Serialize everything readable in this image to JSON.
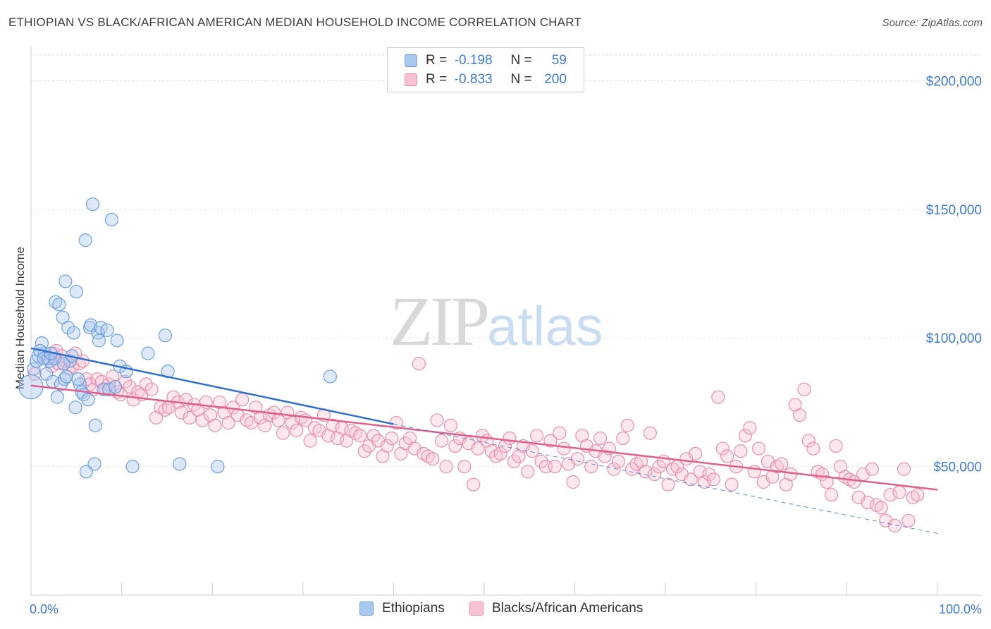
{
  "title": "ETHIOPIAN VS BLACK/AFRICAN AMERICAN MEDIAN HOUSEHOLD INCOME CORRELATION CHART",
  "source": "Source: ZipAtlas.com",
  "watermark": {
    "zip": "ZIP",
    "atlas": "atlas"
  },
  "legend": {
    "rows": [
      {
        "r_label": "R =",
        "r_value": "-0.198",
        "n_label": "N =",
        "n_value": "59",
        "color": "#a9c8f0",
        "border": "#6e9fdc"
      },
      {
        "r_label": "R =",
        "r_value": "-0.833",
        "n_label": "N =",
        "n_value": "200",
        "color": "#f7c3d3",
        "border": "#ea8fae"
      }
    ]
  },
  "bottom_legend": [
    {
      "label": "Ethiopians",
      "color": "#a9c8f0",
      "border": "#6e9fdc"
    },
    {
      "label": "Blacks/African Americans",
      "color": "#f7c3d3",
      "border": "#ea8fae"
    }
  ],
  "chart_data": {
    "type": "scatter",
    "title": "ETHIOPIAN VS BLACK/AFRICAN AMERICAN MEDIAN HOUSEHOLD INCOME CORRELATION CHART",
    "xlabel": "",
    "ylabel": "Median Household Income",
    "xlim": [
      0,
      100
    ],
    "ylim": [
      0,
      210000
    ],
    "x_tick_labels": [
      {
        "value": 0,
        "label": "0.0%"
      },
      {
        "value": 100,
        "label": "100.0%"
      }
    ],
    "y_ticks": [
      {
        "value": 50000,
        "label": "$50,000"
      },
      {
        "value": 100000,
        "label": "$100,000"
      },
      {
        "value": 150000,
        "label": "$150,000"
      },
      {
        "value": 200000,
        "label": "$200,000"
      }
    ],
    "grid": true,
    "legend_position": "top-center",
    "series": [
      {
        "name": "Ethiopians",
        "color": "#a9c8f0",
        "stroke": "#6e9fdc",
        "trend_color": "#2f6fcf",
        "trend": {
          "x0": 0,
          "y0": 96000,
          "x1": 40,
          "y1": 66500,
          "dashed_to_x": 100,
          "dashed_to_y": 24000
        },
        "points": [
          [
            0.0,
            81000
          ],
          [
            0.3,
            88000
          ],
          [
            0.6,
            91000
          ],
          [
            0.8,
            93000
          ],
          [
            1.2,
            98000
          ],
          [
            1.5,
            94000
          ],
          [
            1.7,
            86000
          ],
          [
            1.9,
            92000
          ],
          [
            2.1,
            91000
          ],
          [
            2.4,
            83000
          ],
          [
            2.6,
            92000
          ],
          [
            2.7,
            114000
          ],
          [
            2.9,
            77000
          ],
          [
            3.1,
            113000
          ],
          [
            3.3,
            82000
          ],
          [
            3.5,
            108000
          ],
          [
            3.7,
            84000
          ],
          [
            3.8,
            122000
          ],
          [
            3.9,
            85000
          ],
          [
            4.1,
            104000
          ],
          [
            4.3,
            91000
          ],
          [
            4.5,
            93000
          ],
          [
            4.7,
            102000
          ],
          [
            4.9,
            73000
          ],
          [
            5.0,
            118000
          ],
          [
            5.4,
            82000
          ],
          [
            5.6,
            79000
          ],
          [
            5.8,
            78000
          ],
          [
            6.0,
            138000
          ],
          [
            6.1,
            48000
          ],
          [
            6.3,
            76000
          ],
          [
            6.5,
            104000
          ],
          [
            6.6,
            105000
          ],
          [
            6.8,
            152000
          ],
          [
            7.0,
            51000
          ],
          [
            7.1,
            66000
          ],
          [
            7.4,
            102000
          ],
          [
            7.5,
            99000
          ],
          [
            7.7,
            104000
          ],
          [
            8.0,
            80000
          ],
          [
            8.4,
            103000
          ],
          [
            8.6,
            80000
          ],
          [
            8.9,
            146000
          ],
          [
            9.3,
            81000
          ],
          [
            9.5,
            99000
          ],
          [
            9.8,
            89000
          ],
          [
            10.5,
            87000
          ],
          [
            11.2,
            50000
          ],
          [
            12.9,
            94000
          ],
          [
            14.8,
            101000
          ],
          [
            15.1,
            87000
          ],
          [
            16.4,
            51000
          ],
          [
            20.6,
            50000
          ],
          [
            33.0,
            85000
          ],
          [
            1.0,
            95000
          ],
          [
            1.4,
            92000
          ],
          [
            2.2,
            94000
          ],
          [
            3.6,
            90000
          ],
          [
            5.2,
            84000
          ]
        ]
      },
      {
        "name": "Blacks/African Americans",
        "color": "#f7c3d3",
        "stroke": "#ea8fae",
        "trend_color": "#e0608a",
        "trend": {
          "x0": 0,
          "y0": 81500,
          "x1": 100,
          "y1": 41000
        },
        "points": [
          [
            0.4,
            86000
          ],
          [
            1.6,
            92000
          ],
          [
            2.3,
            89000
          ],
          [
            2.5,
            94000
          ],
          [
            2.8,
            95000
          ],
          [
            3.0,
            90000
          ],
          [
            3.4,
            93000
          ],
          [
            3.8,
            91000
          ],
          [
            4.2,
            88000
          ],
          [
            4.6,
            89000
          ],
          [
            4.9,
            94000
          ],
          [
            5.3,
            90000
          ],
          [
            5.7,
            91000
          ],
          [
            6.1,
            84000
          ],
          [
            6.5,
            82000
          ],
          [
            6.9,
            80000
          ],
          [
            7.3,
            84000
          ],
          [
            7.8,
            83000
          ],
          [
            8.2,
            80000
          ],
          [
            8.6,
            82000
          ],
          [
            9.0,
            85000
          ],
          [
            9.5,
            79000
          ],
          [
            9.9,
            78000
          ],
          [
            10.4,
            83000
          ],
          [
            10.9,
            81000
          ],
          [
            11.3,
            76000
          ],
          [
            11.8,
            79000
          ],
          [
            12.2,
            78000
          ],
          [
            12.7,
            82000
          ],
          [
            13.3,
            80000
          ],
          [
            13.8,
            69000
          ],
          [
            14.3,
            73000
          ],
          [
            14.8,
            72000
          ],
          [
            15.2,
            73000
          ],
          [
            15.7,
            77000
          ],
          [
            16.2,
            75000
          ],
          [
            16.6,
            71000
          ],
          [
            17.1,
            76000
          ],
          [
            17.5,
            69000
          ],
          [
            18.0,
            74000
          ],
          [
            18.4,
            72000
          ],
          [
            18.9,
            68000
          ],
          [
            19.3,
            75000
          ],
          [
            19.8,
            70000
          ],
          [
            20.3,
            66000
          ],
          [
            20.8,
            75000
          ],
          [
            21.3,
            71000
          ],
          [
            21.8,
            67000
          ],
          [
            22.3,
            73000
          ],
          [
            22.8,
            70000
          ],
          [
            23.3,
            76000
          ],
          [
            23.8,
            68000
          ],
          [
            24.3,
            67000
          ],
          [
            24.8,
            73000
          ],
          [
            25.3,
            69000
          ],
          [
            25.8,
            66000
          ],
          [
            26.3,
            70000
          ],
          [
            26.8,
            71000
          ],
          [
            27.3,
            68000
          ],
          [
            27.8,
            63000
          ],
          [
            28.3,
            71000
          ],
          [
            28.8,
            67000
          ],
          [
            29.3,
            64000
          ],
          [
            29.8,
            69000
          ],
          [
            30.3,
            68000
          ],
          [
            30.8,
            60000
          ],
          [
            31.3,
            65000
          ],
          [
            31.8,
            64000
          ],
          [
            32.3,
            70000
          ],
          [
            32.8,
            62000
          ],
          [
            33.3,
            66000
          ],
          [
            33.8,
            61000
          ],
          [
            34.3,
            65000
          ],
          [
            34.8,
            60000
          ],
          [
            35.3,
            64000
          ],
          [
            35.8,
            63000
          ],
          [
            36.3,
            62000
          ],
          [
            36.8,
            56000
          ],
          [
            37.3,
            58000
          ],
          [
            37.8,
            62000
          ],
          [
            38.3,
            60000
          ],
          [
            38.8,
            54000
          ],
          [
            39.3,
            58000
          ],
          [
            39.8,
            61000
          ],
          [
            40.3,
            67000
          ],
          [
            40.8,
            55000
          ],
          [
            41.3,
            59000
          ],
          [
            41.8,
            61000
          ],
          [
            42.3,
            57000
          ],
          [
            42.8,
            90000
          ],
          [
            43.3,
            55000
          ],
          [
            43.8,
            54000
          ],
          [
            44.3,
            53000
          ],
          [
            44.8,
            68000
          ],
          [
            45.3,
            60000
          ],
          [
            45.8,
            50000
          ],
          [
            46.3,
            66000
          ],
          [
            46.8,
            58000
          ],
          [
            47.3,
            61000
          ],
          [
            47.8,
            50000
          ],
          [
            48.3,
            59000
          ],
          [
            48.8,
            43000
          ],
          [
            49.3,
            57000
          ],
          [
            49.8,
            62000
          ],
          [
            50.3,
            60000
          ],
          [
            50.8,
            56000
          ],
          [
            51.3,
            54000
          ],
          [
            51.8,
            55000
          ],
          [
            52.3,
            58000
          ],
          [
            52.8,
            61000
          ],
          [
            53.3,
            52000
          ],
          [
            53.8,
            54000
          ],
          [
            54.3,
            58000
          ],
          [
            54.8,
            48000
          ],
          [
            55.3,
            56000
          ],
          [
            55.8,
            62000
          ],
          [
            56.3,
            52000
          ],
          [
            56.8,
            50000
          ],
          [
            57.3,
            60000
          ],
          [
            57.8,
            50000
          ],
          [
            58.3,
            63000
          ],
          [
            58.8,
            57000
          ],
          [
            59.3,
            51000
          ],
          [
            59.8,
            44000
          ],
          [
            60.3,
            53000
          ],
          [
            60.8,
            62000
          ],
          [
            61.3,
            58000
          ],
          [
            61.8,
            50000
          ],
          [
            62.3,
            56000
          ],
          [
            62.8,
            61000
          ],
          [
            63.3,
            54000
          ],
          [
            63.8,
            57000
          ],
          [
            64.3,
            49000
          ],
          [
            64.8,
            52000
          ],
          [
            65.3,
            61000
          ],
          [
            65.8,
            66000
          ],
          [
            66.3,
            49000
          ],
          [
            66.8,
            51000
          ],
          [
            67.3,
            52000
          ],
          [
            67.8,
            48000
          ],
          [
            68.3,
            63000
          ],
          [
            68.8,
            47000
          ],
          [
            69.3,
            50000
          ],
          [
            69.8,
            52000
          ],
          [
            70.3,
            43000
          ],
          [
            70.8,
            49000
          ],
          [
            71.3,
            50000
          ],
          [
            71.8,
            47000
          ],
          [
            72.3,
            53000
          ],
          [
            72.8,
            45000
          ],
          [
            73.3,
            55000
          ],
          [
            73.8,
            48000
          ],
          [
            74.3,
            44000
          ],
          [
            74.8,
            47000
          ],
          [
            75.3,
            45000
          ],
          [
            75.8,
            77000
          ],
          [
            76.3,
            57000
          ],
          [
            76.8,
            54000
          ],
          [
            77.3,
            43000
          ],
          [
            77.8,
            50000
          ],
          [
            78.3,
            56000
          ],
          [
            78.8,
            62000
          ],
          [
            79.3,
            65000
          ],
          [
            79.8,
            48000
          ],
          [
            80.3,
            57000
          ],
          [
            80.8,
            44000
          ],
          [
            81.3,
            52000
          ],
          [
            81.8,
            46000
          ],
          [
            82.3,
            50000
          ],
          [
            82.8,
            51000
          ],
          [
            83.3,
            43000
          ],
          [
            83.8,
            47000
          ],
          [
            84.3,
            74000
          ],
          [
            84.8,
            70000
          ],
          [
            85.3,
            80000
          ],
          [
            85.8,
            60000
          ],
          [
            86.3,
            57000
          ],
          [
            86.8,
            48000
          ],
          [
            87.3,
            47000
          ],
          [
            87.8,
            44000
          ],
          [
            88.3,
            39000
          ],
          [
            88.8,
            58000
          ],
          [
            89.3,
            50000
          ],
          [
            89.8,
            46000
          ],
          [
            90.3,
            45000
          ],
          [
            90.8,
            44000
          ],
          [
            91.3,
            38000
          ],
          [
            91.8,
            47000
          ],
          [
            92.3,
            36000
          ],
          [
            92.8,
            49000
          ],
          [
            93.3,
            35000
          ],
          [
            93.8,
            34000
          ],
          [
            94.3,
            29000
          ],
          [
            94.8,
            39000
          ],
          [
            95.3,
            27000
          ],
          [
            95.8,
            40000
          ],
          [
            96.3,
            49000
          ],
          [
            96.8,
            29000
          ],
          [
            97.3,
            38000
          ],
          [
            97.8,
            39000
          ]
        ]
      }
    ]
  }
}
